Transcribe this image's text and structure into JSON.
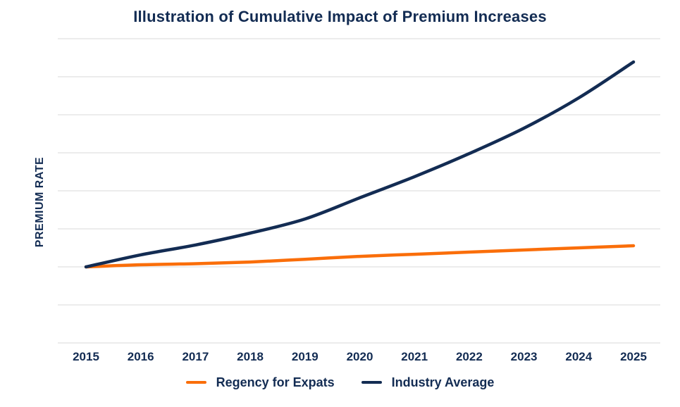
{
  "title": "Illustration of Cumulative Impact of Premium Increases",
  "colors": {
    "navy": "#132C53",
    "orange": "#FA6E0A",
    "gridline": "#D9D9D9",
    "background": "#FFFFFF"
  },
  "chart_data": {
    "type": "line",
    "title": "Illustration of Cumulative Impact of Premium Increases",
    "xlabel": "",
    "ylabel": "PREMIUM RATE",
    "x": [
      2015,
      2016,
      2017,
      2018,
      2019,
      2020,
      2021,
      2022,
      2023,
      2024,
      2025
    ],
    "x_tick_labels": [
      "2015",
      "2016",
      "2017",
      "2018",
      "2019",
      "2020",
      "2021",
      "2022",
      "2023",
      "2024",
      "2025"
    ],
    "y_tick_labels_shown": false,
    "ylim": [
      0.5,
      2.5
    ],
    "gridline_step": 0.25,
    "grid": "horizontal",
    "legend_position": "bottom",
    "series": [
      {
        "name": "Regency for Expats",
        "color": "#FA6E0A",
        "values": [
          1.0,
          1.014,
          1.021,
          1.032,
          1.05,
          1.069,
          1.083,
          1.097,
          1.111,
          1.125,
          1.139
        ]
      },
      {
        "name": "Industry Average",
        "color": "#132C53",
        "values": [
          1.0,
          1.079,
          1.144,
          1.222,
          1.315,
          1.454,
          1.593,
          1.745,
          1.912,
          2.111,
          2.347
        ]
      }
    ]
  }
}
